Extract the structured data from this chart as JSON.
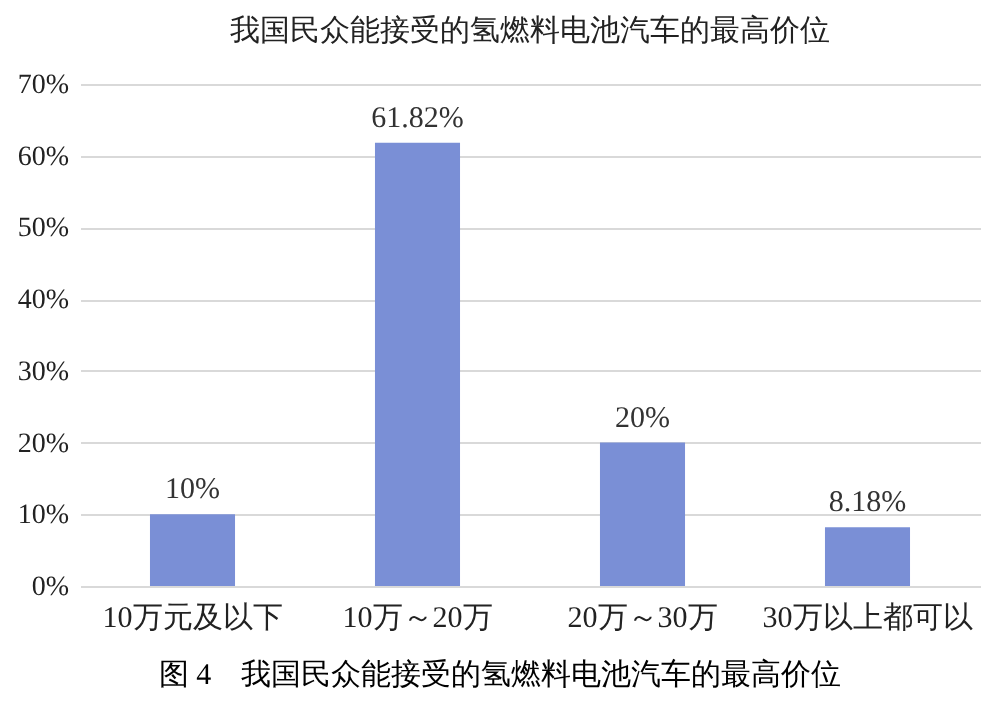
{
  "chart_data": {
    "type": "bar",
    "title": "我国民众能接受的氢燃料电池汽车的最高价位",
    "categories": [
      "10万元及以下",
      "10万～20万",
      "20万～30万",
      "30万以上都可以"
    ],
    "values": [
      10,
      61.82,
      20,
      8.18
    ],
    "value_labels": [
      "10%",
      "61.82%",
      "20%",
      "8.18%"
    ],
    "color": "#7a8fd6",
    "ylim": [
      0,
      70
    ],
    "yticks": [
      {
        "value": 0,
        "label": "0%"
      },
      {
        "value": 10,
        "label": "10%"
      },
      {
        "value": 20,
        "label": "20%"
      },
      {
        "value": 30,
        "label": "30%"
      },
      {
        "value": 40,
        "label": "40%"
      },
      {
        "value": 50,
        "label": "50%"
      },
      {
        "value": 60,
        "label": "60%"
      },
      {
        "value": 70,
        "label": "70%"
      }
    ],
    "grid": "y",
    "annotations": [
      "图 4　我国民众能接受的氢燃料电池汽车的最高价位"
    ]
  }
}
